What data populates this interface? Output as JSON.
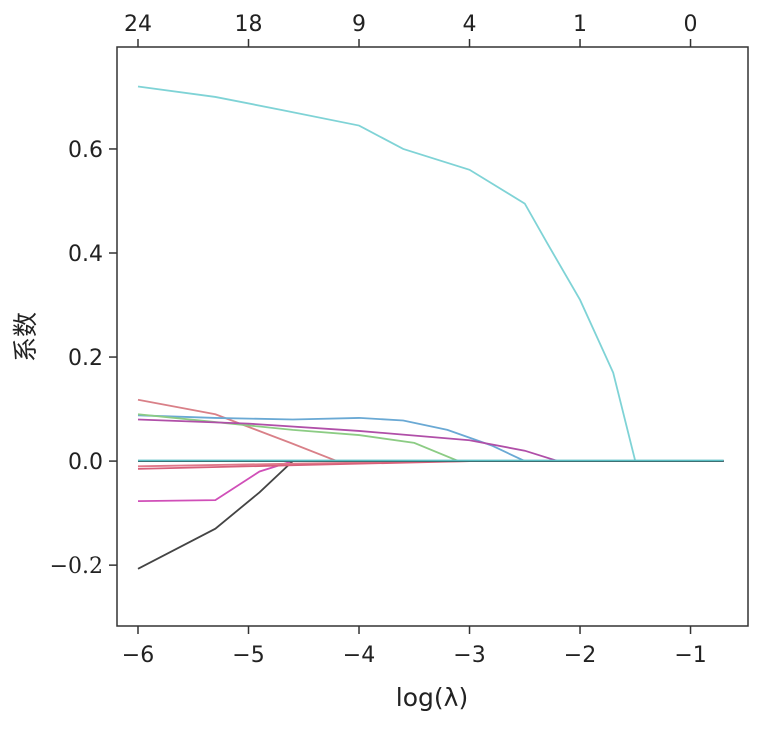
{
  "chart_data": {
    "type": "line",
    "title": "",
    "xlabel": "log(λ)",
    "ylabel": "系数",
    "xlim": [
      -6.19,
      -0.48
    ],
    "ylim": [
      -0.317,
      0.796
    ],
    "grid": false,
    "x_ticks": [
      -6,
      -5,
      -4,
      -3,
      -2,
      -1
    ],
    "x_tick_labels": [
      "−6",
      "−5",
      "−4",
      "−3",
      "−2",
      "−1"
    ],
    "y_ticks": [
      0.6,
      0.4,
      0.2,
      0.0,
      -0.2
    ],
    "y_tick_labels": [
      "0.6",
      "0.4",
      "0.2",
      "0.0",
      "−0.2"
    ],
    "top_ticks": [
      -6,
      -5,
      -4,
      -3,
      -2,
      -1
    ],
    "top_tick_labels": [
      "24",
      "18",
      "9",
      "4",
      "1",
      "0"
    ],
    "series": [
      {
        "color": "#7fd3d6",
        "points": [
          [
            -6,
            0.72
          ],
          [
            -5.3,
            0.7
          ],
          [
            -4.7,
            0.675
          ],
          [
            -4,
            0.645
          ],
          [
            -3.6,
            0.6
          ],
          [
            -3,
            0.56
          ],
          [
            -2.5,
            0.495
          ],
          [
            -2.3,
            0.42
          ],
          [
            -2,
            0.31
          ],
          [
            -1.7,
            0.17
          ],
          [
            -1.5,
            0.0
          ],
          [
            -0.7,
            0.0
          ]
        ]
      },
      {
        "color": "#d98088",
        "points": [
          [
            -6,
            0.118
          ],
          [
            -5.3,
            0.09
          ],
          [
            -4.62,
            0.035
          ],
          [
            -4.2,
            0.0
          ],
          [
            -0.7,
            0.0
          ]
        ]
      },
      {
        "color": "#6aa9d4",
        "points": [
          [
            -6,
            0.088
          ],
          [
            -5.3,
            0.083
          ],
          [
            -4.6,
            0.08
          ],
          [
            -4,
            0.083
          ],
          [
            -3.6,
            0.078
          ],
          [
            -3.2,
            0.06
          ],
          [
            -2.8,
            0.03
          ],
          [
            -2.5,
            0.0
          ],
          [
            -0.7,
            0.0
          ]
        ]
      },
      {
        "color": "#8ccc84",
        "points": [
          [
            -6,
            0.09
          ],
          [
            -5.3,
            0.075
          ],
          [
            -4.6,
            0.06
          ],
          [
            -4,
            0.05
          ],
          [
            -3.5,
            0.035
          ],
          [
            -3.1,
            0.0
          ],
          [
            -0.7,
            0.0
          ]
        ]
      },
      {
        "color": "#b04fa8",
        "points": [
          [
            -6,
            0.08
          ],
          [
            -5,
            0.072
          ],
          [
            -4,
            0.058
          ],
          [
            -3,
            0.04
          ],
          [
            -2.5,
            0.02
          ],
          [
            -2.2,
            0.0
          ],
          [
            -0.7,
            0.0
          ]
        ]
      },
      {
        "color": "#d04fb8",
        "points": [
          [
            -6,
            -0.077
          ],
          [
            -5.3,
            -0.075
          ],
          [
            -4.9,
            -0.02
          ],
          [
            -4.6,
            0.0
          ],
          [
            -0.7,
            0.0
          ]
        ]
      },
      {
        "color": "#444444",
        "points": [
          [
            -6,
            -0.207
          ],
          [
            -5.3,
            -0.13
          ],
          [
            -4.9,
            -0.06
          ],
          [
            -4.6,
            0.0
          ],
          [
            -0.7,
            0.0
          ]
        ]
      },
      {
        "color": "#e07a8a",
        "points": [
          [
            -6,
            -0.01
          ],
          [
            -4.6,
            -0.005
          ],
          [
            -3,
            0.0
          ],
          [
            -0.7,
            0.0
          ]
        ]
      },
      {
        "color": "#d8607a",
        "points": [
          [
            -6,
            -0.015
          ],
          [
            -4.6,
            -0.008
          ],
          [
            -3,
            0.0
          ],
          [
            -0.7,
            0.0
          ]
        ]
      },
      {
        "color": "#222222",
        "points": [
          [
            -6,
            0.0
          ],
          [
            -0.7,
            0.0
          ]
        ]
      },
      {
        "color": "#5bbfc4",
        "points": [
          [
            -6,
            0.001
          ],
          [
            -0.7,
            0.001
          ]
        ]
      }
    ]
  }
}
